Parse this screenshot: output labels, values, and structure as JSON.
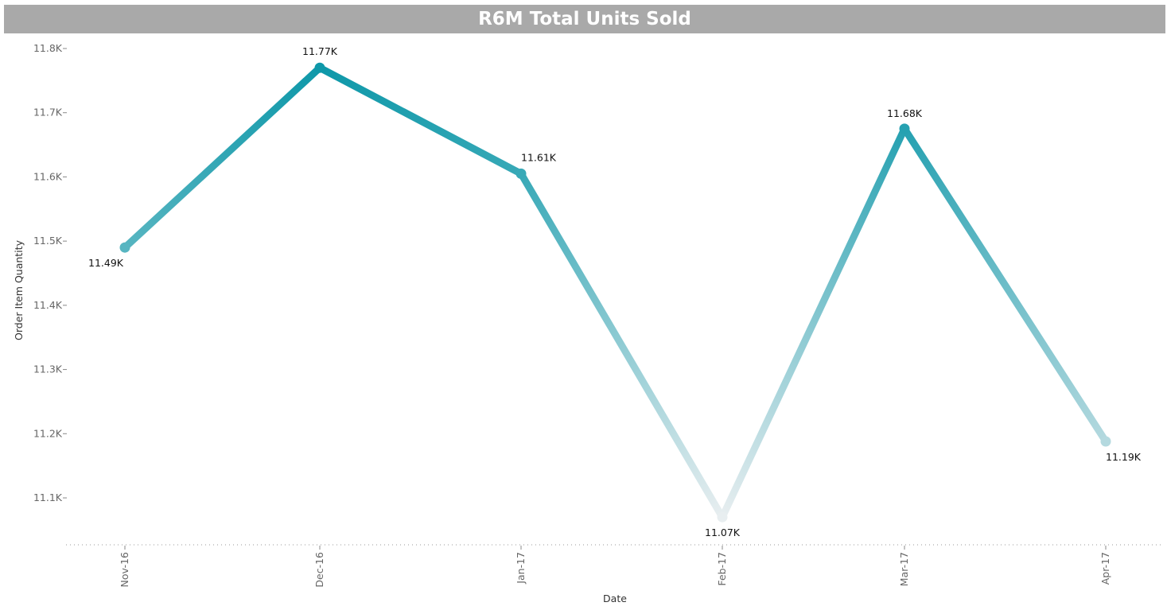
{
  "chart_data": {
    "type": "line",
    "title": "R6M Total Units Sold",
    "xlabel": "Date",
    "ylabel": "Order Item Quantity",
    "categories": [
      "Nov-16",
      "Dec-16",
      "Jan-17",
      "Feb-17",
      "Mar-17",
      "Apr-17"
    ],
    "series": [
      {
        "values": [
          11490,
          11770,
          11605,
          11070,
          11675,
          11188
        ],
        "labels": [
          "11.49K",
          "11.77K",
          "11.61K",
          "11.07K",
          "11.68K",
          "11.19K"
        ]
      }
    ],
    "ylim": [
      11030,
      11830
    ],
    "yticks": [
      11100,
      11200,
      11300,
      11400,
      11500,
      11600,
      11700,
      11800
    ],
    "ytick_labels": [
      "11.1K",
      "11.2K",
      "11.3K",
      "11.4K",
      "11.5K",
      "11.6K",
      "11.7K",
      "11.8K"
    ],
    "grid": false,
    "colors": {
      "line_high": "#0e98a9",
      "line_low": "#e8eef0",
      "title_bar": "#a9a9a9"
    }
  }
}
